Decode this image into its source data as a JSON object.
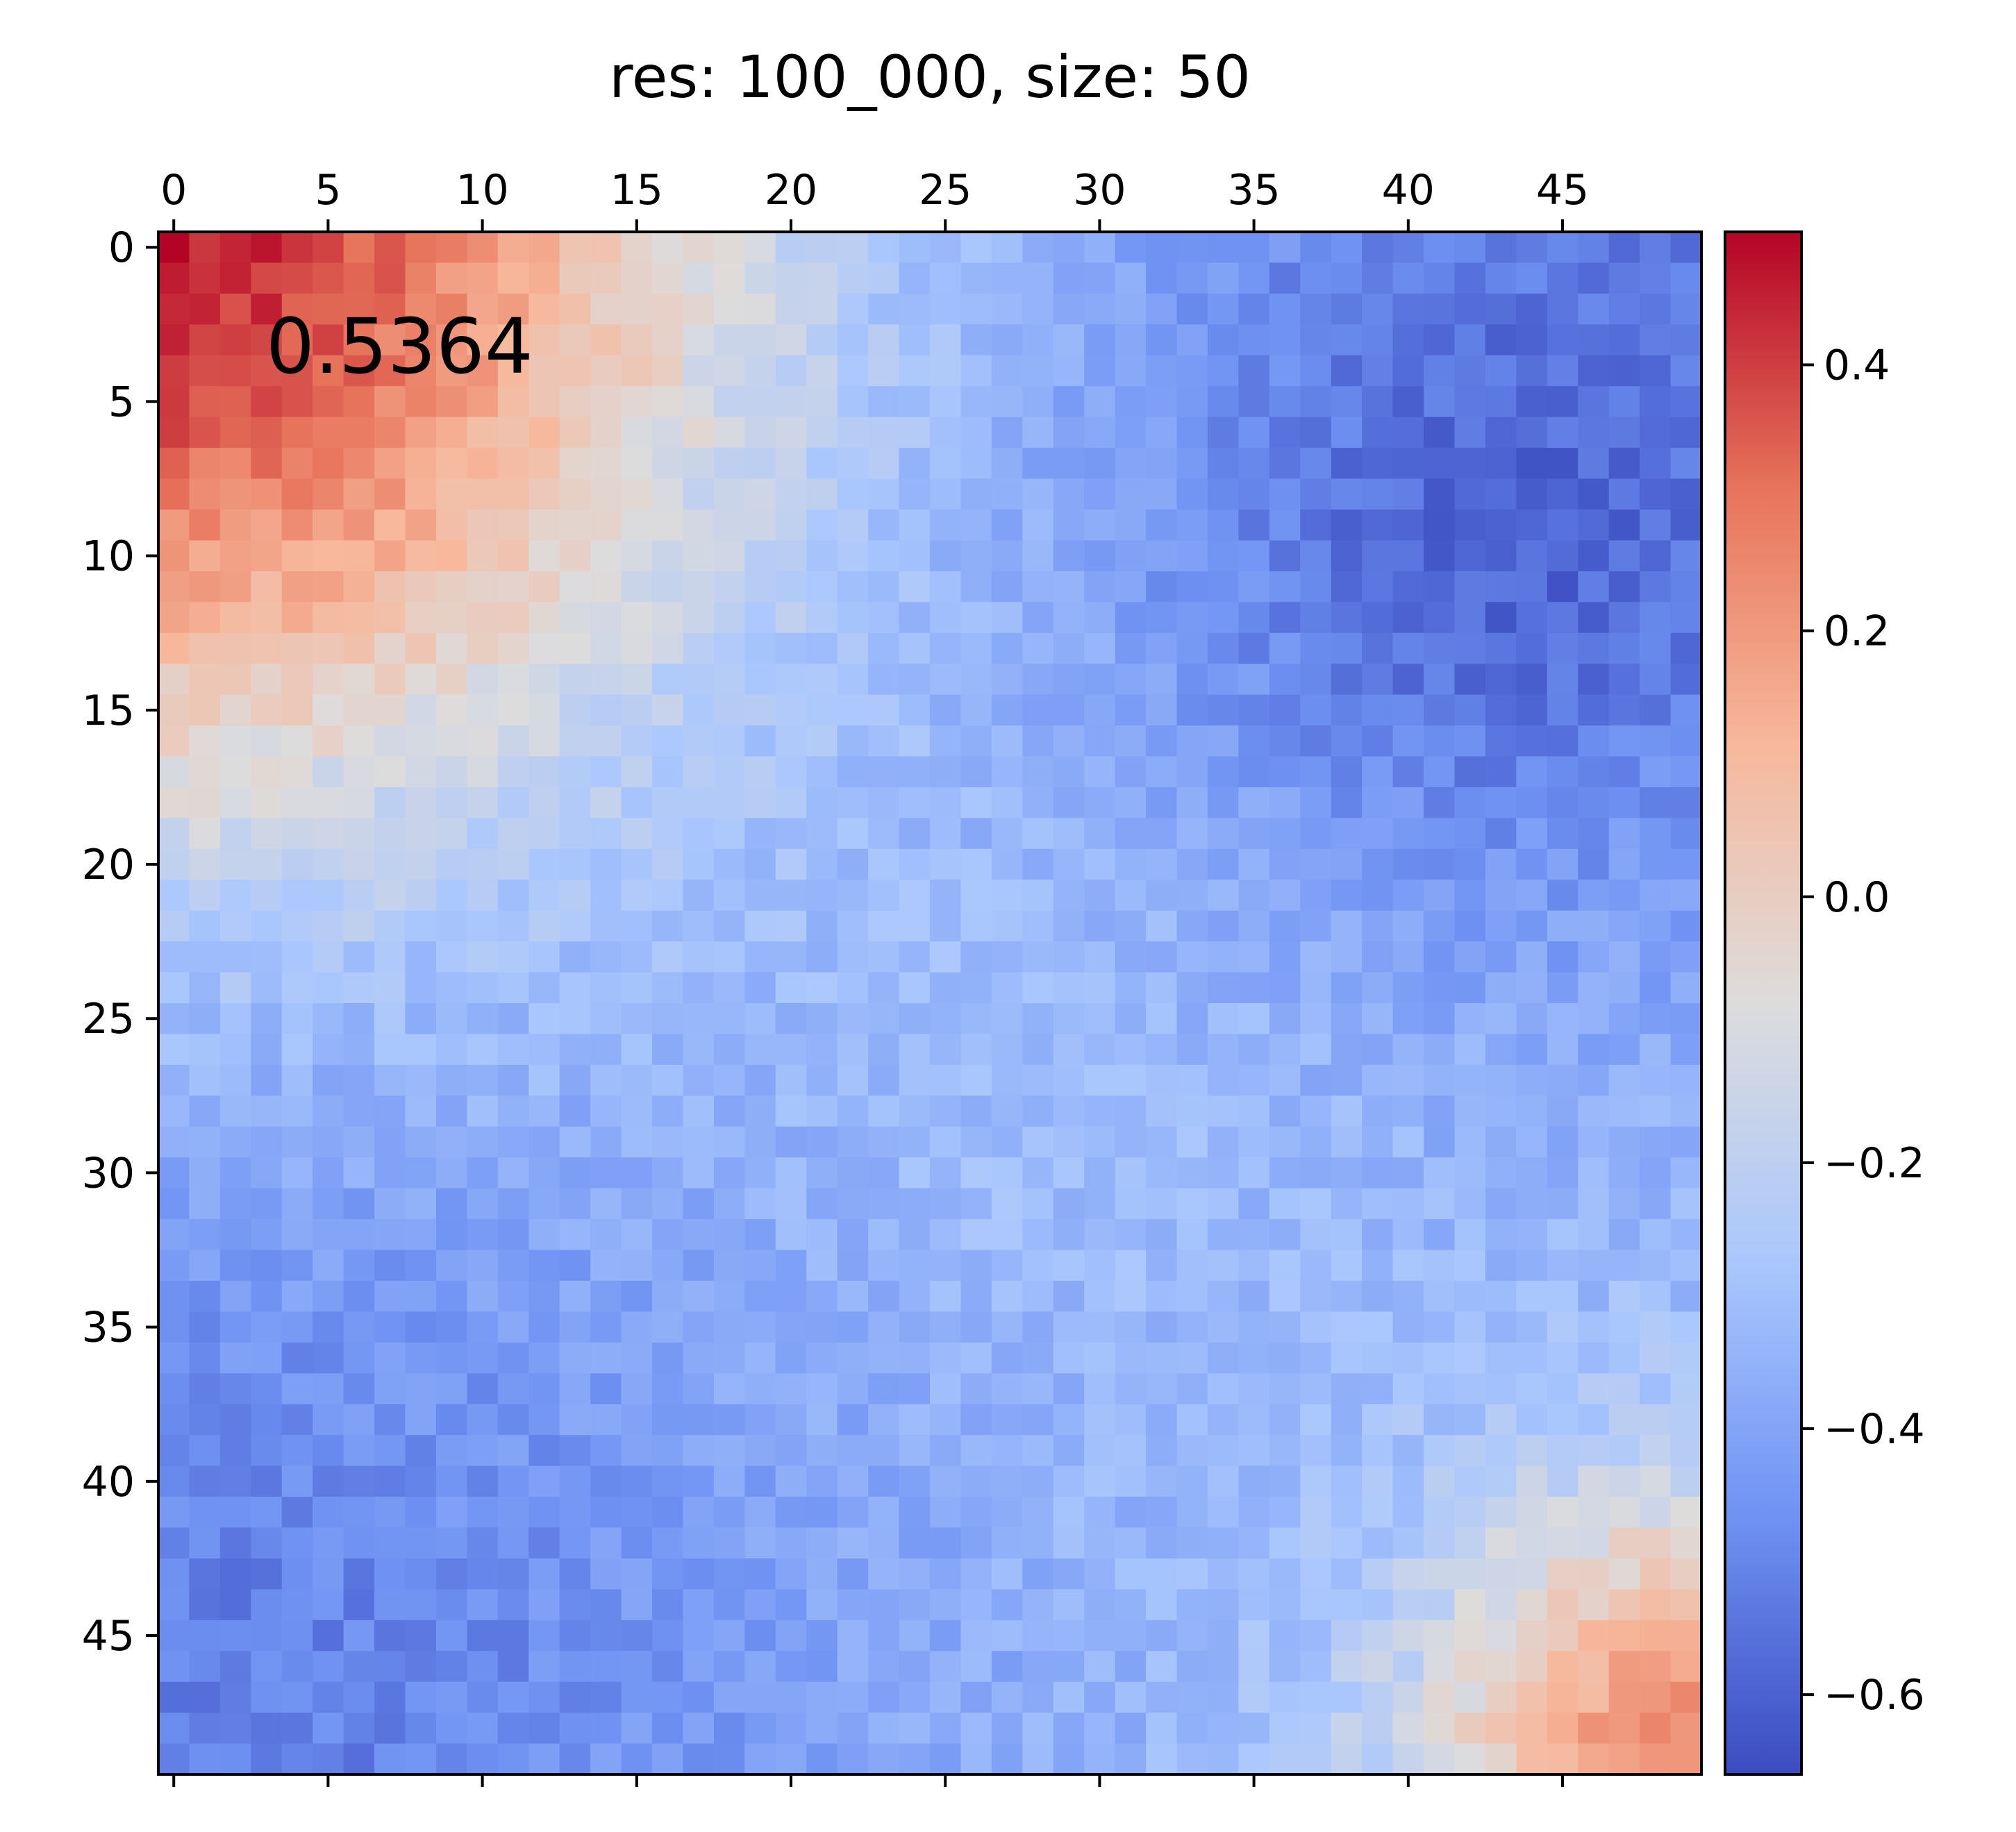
{
  "chart_data": {
    "type": "heatmap",
    "title": "res: 100_000, size: 50",
    "annotation": "0.5364",
    "rows": 50,
    "cols": 50,
    "x_ticks": [
      "0",
      "5",
      "10",
      "15",
      "20",
      "25",
      "30",
      "35",
      "40",
      "45"
    ],
    "x_tick_values": [
      0,
      5,
      10,
      15,
      20,
      25,
      30,
      35,
      40,
      45
    ],
    "y_ticks": [
      "0",
      "5",
      "10",
      "15",
      "20",
      "25",
      "30",
      "35",
      "40",
      "45"
    ],
    "y_tick_values": [
      0,
      5,
      10,
      15,
      20,
      25,
      30,
      35,
      40,
      45
    ],
    "x_ticks_position": "top",
    "colormap": "coolwarm",
    "vmin": -0.66,
    "vmax": 0.5,
    "colorbar_ticks": [
      "0.4",
      "0.2",
      "0.0",
      "−0.2",
      "−0.4",
      "−0.6"
    ],
    "colorbar_tick_values": [
      0.4,
      0.2,
      0.0,
      -0.2,
      -0.4,
      -0.6
    ],
    "colors": [
      "#3b4cc0",
      "#6f92f3",
      "#aac7fd",
      "#dddcdc",
      "#f7b89c",
      "#e7745b",
      "#b40426"
    ]
  }
}
